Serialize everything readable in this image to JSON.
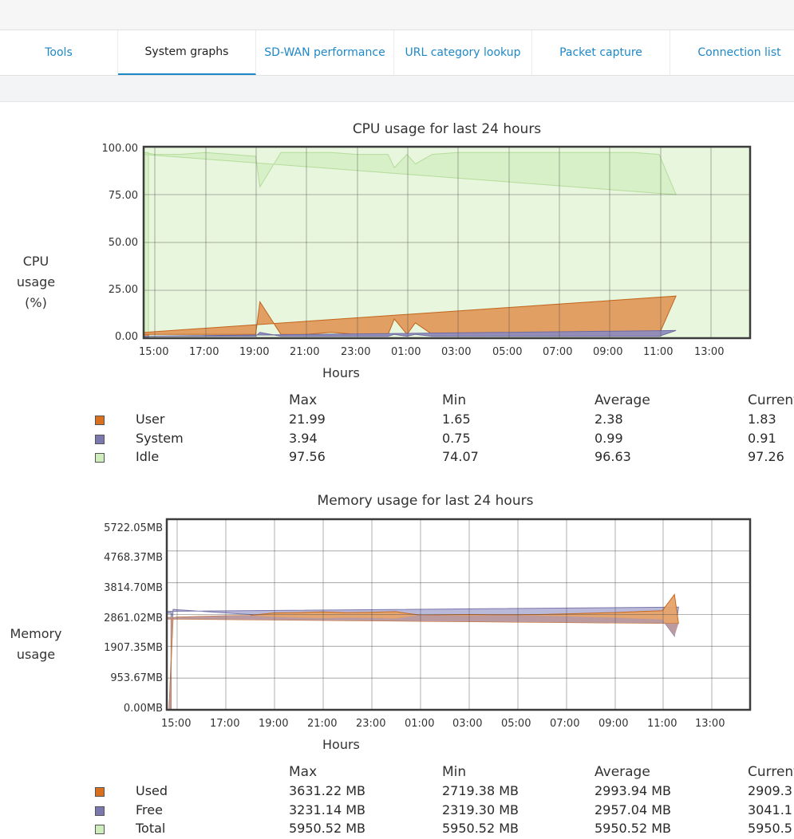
{
  "tabs": [
    {
      "label": "Tools",
      "active": false
    },
    {
      "label": "System graphs",
      "active": true
    },
    {
      "label": "SD-WAN performance",
      "active": false
    },
    {
      "label": "URL category lookup",
      "active": false
    },
    {
      "label": "Packet capture",
      "active": false
    },
    {
      "label": "Connection list",
      "active": false
    }
  ],
  "cpu": {
    "title": "CPU usage for last 24 hours",
    "ylabel_lines": [
      "CPU",
      "usage",
      "(%)"
    ],
    "y_ticks": [
      "100.00",
      "75.00",
      "50.00",
      "25.00",
      "0.00"
    ],
    "x_ticks": [
      "15:00",
      "17:00",
      "19:00",
      "21:00",
      "23:00",
      "01:00",
      "03:00",
      "05:00",
      "07:00",
      "09:00",
      "11:00",
      "13:00"
    ],
    "xlabel": "Hours",
    "legend_headers": [
      "Max",
      "Min",
      "Average",
      "Current"
    ],
    "legend": [
      {
        "name": "User",
        "color": "#d9701f",
        "max": "21.99",
        "min": "1.65",
        "avg": "2.38",
        "cur": "1.83"
      },
      {
        "name": "System",
        "color": "#7b78ad",
        "max": "3.94",
        "min": "0.75",
        "avg": "0.99",
        "cur": "0.91"
      },
      {
        "name": "Idle",
        "color": "#cfeebb",
        "max": "97.56",
        "min": "74.07",
        "avg": "96.63",
        "cur": "97.26"
      }
    ]
  },
  "memory": {
    "title": "Memory usage for last 24 hours",
    "ylabel_lines": [
      "Memory",
      "usage"
    ],
    "y_ticks": [
      "5722.05MB",
      "4768.37MB",
      "3814.70MB",
      "2861.02MB",
      "1907.35MB",
      "953.67MB",
      "0.00MB"
    ],
    "x_ticks": [
      "15:00",
      "17:00",
      "19:00",
      "21:00",
      "23:00",
      "01:00",
      "03:00",
      "05:00",
      "07:00",
      "09:00",
      "11:00",
      "13:00"
    ],
    "xlabel": "Hours",
    "legend_headers": [
      "Max",
      "Min",
      "Average",
      "Current"
    ],
    "legend": [
      {
        "name": "Used",
        "color": "#d9701f",
        "max": "3631.22 MB",
        "min": "2719.38 MB",
        "avg": "2993.94 MB",
        "cur": "2909.3"
      },
      {
        "name": "Free",
        "color": "#7b78ad",
        "max": "3231.14 MB",
        "min": "2319.30 MB",
        "avg": "2957.04 MB",
        "cur": "3041.1"
      },
      {
        "name": "Total",
        "color": "#cfeebb",
        "max": "5950.52 MB",
        "min": "5950.52 MB",
        "avg": "5950.52 MB",
        "cur": "5950.5"
      }
    ]
  },
  "chart_data": [
    {
      "type": "area",
      "title": "CPU usage for last 24 hours",
      "xlabel": "Hours",
      "ylabel": "CPU usage (%)",
      "ylim": [
        0,
        100
      ],
      "x": [
        "14:30",
        "15:00",
        "16:00",
        "17:00",
        "18:00",
        "19:00",
        "19:10",
        "20:00",
        "21:00",
        "22:00",
        "23:00",
        "00:15",
        "00:30",
        "01:00",
        "01:20",
        "02:00",
        "03:00",
        "04:00",
        "05:00",
        "06:00",
        "07:00",
        "08:00",
        "09:00",
        "10:00",
        "11:00",
        "11:40",
        "12:00",
        "13:00",
        "14:00",
        "14:45"
      ],
      "series": [
        {
          "name": "Idle",
          "values": [
            97,
            96,
            96,
            97,
            96,
            95,
            79,
            97,
            97,
            97,
            96,
            96,
            89,
            96,
            91,
            96,
            97,
            97,
            97,
            97,
            97,
            97,
            97,
            97,
            96,
            75,
            96,
            97,
            97,
            97
          ]
        },
        {
          "name": "User",
          "values": [
            2,
            2,
            2,
            2,
            2,
            2,
            19,
            2,
            2,
            3,
            2,
            2,
            10,
            2,
            8,
            2,
            2,
            2,
            2,
            2,
            2,
            2,
            2,
            2,
            2,
            22,
            3,
            2,
            2,
            2
          ]
        },
        {
          "name": "System",
          "values": [
            1,
            1,
            1,
            1,
            1,
            1,
            3,
            1,
            1,
            1,
            1,
            1,
            2,
            1,
            2,
            1,
            1,
            1,
            1,
            1,
            1,
            1,
            1,
            1,
            1,
            4,
            1,
            1,
            1,
            1
          ]
        }
      ],
      "grid": true
    },
    {
      "type": "area",
      "title": "Memory usage for last 24 hours",
      "xlabel": "Hours",
      "ylabel": "Memory usage (MB)",
      "ylim": [
        0,
        6000
      ],
      "x": [
        "14:40",
        "14:50",
        "15:00",
        "16:00",
        "17:00",
        "18:00",
        "19:00",
        "20:00",
        "21:00",
        "22:00",
        "23:00",
        "00:00",
        "01:00",
        "02:00",
        "03:00",
        "04:00",
        "05:00",
        "06:00",
        "07:00",
        "08:00",
        "09:00",
        "10:00",
        "11:00",
        "11:30",
        "11:40",
        "12:00",
        "13:00",
        "14:00",
        "14:45"
      ],
      "series": [
        {
          "name": "Total",
          "values": [
            5950,
            5950,
            5950,
            5950,
            5950,
            5950,
            5950,
            5950,
            5950,
            5950,
            5950,
            5950,
            5950,
            5950,
            5950,
            5950,
            5950,
            5950,
            5950,
            5950,
            5950,
            5950,
            5950,
            5950,
            5950,
            5950,
            5950,
            5950,
            5950
          ]
        },
        {
          "name": "Used",
          "values": [
            0,
            2900,
            2920,
            2940,
            2960,
            2970,
            3050,
            3060,
            3080,
            3060,
            3070,
            3090,
            2980,
            2990,
            3000,
            2990,
            2990,
            3000,
            3020,
            3040,
            3060,
            3090,
            3120,
            3631,
            2720,
            2860,
            2900,
            2905,
            2910
          ]
        },
        {
          "name": "Free",
          "values": [
            0,
            3160,
            3150,
            3100,
            3050,
            3000,
            2920,
            2900,
            2880,
            2900,
            2890,
            2870,
            2980,
            2970,
            2960,
            2970,
            2970,
            2960,
            2940,
            2920,
            2900,
            2870,
            2840,
            2319,
            3231,
            3100,
            3060,
            3050,
            3041
          ]
        }
      ],
      "grid": true
    }
  ]
}
